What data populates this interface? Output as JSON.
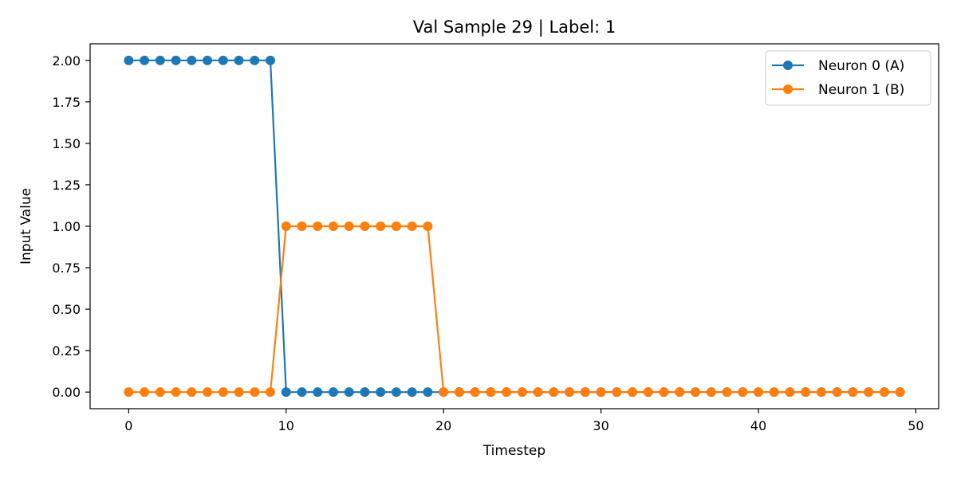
{
  "chart_data": {
    "type": "line",
    "title": "Val Sample 29 | Label: 1",
    "xlabel": "Timestep",
    "ylabel": "Input Value",
    "xlim": [
      -2.45,
      51.45
    ],
    "ylim": [
      -0.1,
      2.1
    ],
    "xticks": [
      0,
      10,
      20,
      30,
      40,
      50
    ],
    "yticks": [
      0.0,
      0.25,
      0.5,
      0.75,
      1.0,
      1.25,
      1.5,
      1.75,
      2.0
    ],
    "ytick_labels": [
      "0.00",
      "0.25",
      "0.50",
      "0.75",
      "1.00",
      "1.25",
      "1.50",
      "1.75",
      "2.00"
    ],
    "xtick_labels": [
      "0",
      "10",
      "20",
      "30",
      "40",
      "50"
    ],
    "grid": false,
    "legend_position": "top-right",
    "x": [
      0,
      1,
      2,
      3,
      4,
      5,
      6,
      7,
      8,
      9,
      10,
      11,
      12,
      13,
      14,
      15,
      16,
      17,
      18,
      19,
      20,
      21,
      22,
      23,
      24,
      25,
      26,
      27,
      28,
      29,
      30,
      31,
      32,
      33,
      34,
      35,
      36,
      37,
      38,
      39,
      40,
      41,
      42,
      43,
      44,
      45,
      46,
      47,
      48,
      49
    ],
    "series": [
      {
        "name": "Neuron 0 (A)",
        "color": "#1f77b4",
        "marker": "circle",
        "values": [
          2,
          2,
          2,
          2,
          2,
          2,
          2,
          2,
          2,
          2,
          0,
          0,
          0,
          0,
          0,
          0,
          0,
          0,
          0,
          0,
          0,
          0,
          0,
          0,
          0,
          0,
          0,
          0,
          0,
          0,
          0,
          0,
          0,
          0,
          0,
          0,
          0,
          0,
          0,
          0,
          0,
          0,
          0,
          0,
          0,
          0,
          0,
          0,
          0,
          0
        ]
      },
      {
        "name": "Neuron 1 (B)",
        "color": "#ff7f0e",
        "marker": "circle",
        "values": [
          0,
          0,
          0,
          0,
          0,
          0,
          0,
          0,
          0,
          0,
          1,
          1,
          1,
          1,
          1,
          1,
          1,
          1,
          1,
          1,
          0,
          0,
          0,
          0,
          0,
          0,
          0,
          0,
          0,
          0,
          0,
          0,
          0,
          0,
          0,
          0,
          0,
          0,
          0,
          0,
          0,
          0,
          0,
          0,
          0,
          0,
          0,
          0,
          0,
          0
        ]
      }
    ]
  }
}
